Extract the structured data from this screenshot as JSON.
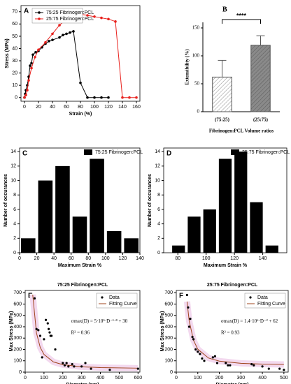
{
  "chart_data": [
    {
      "type": "line",
      "label": "A",
      "xlabel": "Strain (%)",
      "ylabel": "Stress (MPa)",
      "xlim": [
        -5,
        165
      ],
      "xticks": [
        0,
        20,
        40,
        60,
        80,
        100,
        120,
        140,
        160
      ],
      "ylim": [
        -3,
        75
      ],
      "yticks": [
        0,
        10,
        20,
        30,
        40,
        50,
        60,
        70
      ],
      "legend": "upper left",
      "series": [
        {
          "name": "75:25 Fibrinogen:PCL",
          "color": "#000000",
          "x": [
            0,
            1,
            2,
            4,
            6,
            8,
            10,
            12,
            16,
            20,
            25,
            30,
            35,
            40,
            50,
            55,
            60,
            65,
            70,
            80,
            90,
            100,
            110,
            120
          ],
          "values": [
            0,
            3,
            6,
            10,
            17,
            26,
            28,
            35,
            37,
            38,
            41,
            44,
            46,
            47,
            49,
            51,
            52,
            53,
            54,
            12,
            0,
            0,
            0,
            0
          ]
        },
        {
          "name": "25:75 Fibrinogen:PCL",
          "color": "#e8211d",
          "x": [
            0,
            2,
            4,
            6,
            10,
            15,
            20,
            30,
            40,
            50,
            60,
            65,
            70,
            80,
            90,
            100,
            110,
            120,
            130,
            140,
            150,
            160
          ],
          "values": [
            0,
            2,
            6,
            14,
            24,
            33,
            39,
            45,
            52,
            59,
            64,
            69,
            69,
            68,
            67,
            66,
            65,
            64,
            62,
            0,
            0,
            0
          ]
        }
      ]
    },
    {
      "type": "bar",
      "label": "B",
      "ylabel": "Extensibility (%)",
      "xlabel": "Fibrinogen:PCL Volume ratios",
      "categories": [
        "(75:25)",
        "(25:75)"
      ],
      "values": [
        62,
        119
      ],
      "errors": [
        30,
        17
      ],
      "colors": [
        "#ffffff",
        "#8a8a8a"
      ],
      "annotation": "****",
      "ylim": [
        0,
        160
      ],
      "yticks": [
        0,
        50,
        100,
        150
      ]
    },
    {
      "type": "histogram",
      "label": "C",
      "xlabel": "Maximum Strain %",
      "ylabel": "Number of occurances",
      "bins": [
        0,
        20,
        40,
        60,
        80,
        100,
        120,
        140
      ],
      "series": [
        {
          "name": "75:25 Fibrinogen:PCL",
          "color": "#000000",
          "values": [
            2,
            10,
            12,
            5,
            13,
            3,
            2
          ]
        }
      ],
      "xlim": [
        0,
        140
      ],
      "xticks": [
        0,
        20,
        40,
        60,
        80,
        100,
        120,
        140
      ],
      "ylim": [
        0,
        14.5
      ],
      "yticks": [
        0,
        2,
        4,
        6,
        8,
        10,
        12,
        14
      ],
      "legend": "upper right"
    },
    {
      "type": "histogram",
      "label": "D",
      "xlabel": "Maximum Strain %",
      "ylabel": "Number of occurances",
      "bins": [
        75,
        86,
        97,
        108,
        119,
        130,
        141,
        152
      ],
      "series": [
        {
          "name": "25:75 Fibrinogen:PCL",
          "color": "#000000",
          "values": [
            1,
            5,
            6,
            13,
            14,
            7,
            1
          ]
        }
      ],
      "xlim": [
        70,
        157
      ],
      "xticks": [
        80,
        100,
        120,
        140
      ],
      "ylim": [
        0,
        14.5
      ],
      "yticks": [
        0,
        2,
        4,
        6,
        8,
        10,
        12,
        14
      ],
      "legend": "upper right"
    },
    {
      "type": "scatter",
      "label": "E",
      "title": "75:25 Fibrinogen:PCL",
      "xlabel": "Diameter (nm)",
      "ylabel": "Max Stress (MPa)",
      "xlim": [
        0,
        610
      ],
      "xticks": [
        0,
        100,
        200,
        300,
        400,
        500,
        600
      ],
      "ylim": [
        0,
        720
      ],
      "yticks": [
        0,
        100,
        200,
        300,
        400,
        500,
        600,
        700
      ],
      "legend": "upper right",
      "annotations": [
        "σmax(D) = 5·10⁵·D⁻¹·⁸ + 30",
        "R² = 0.96"
      ],
      "series": [
        {
          "name": "Data",
          "type": "scatter",
          "color": "#000000",
          "x": [
            50,
            60,
            70,
            80,
            90,
            100,
            110,
            120,
            125,
            130,
            135,
            140,
            160,
            200,
            210,
            220,
            230,
            250,
            260,
            300,
            320,
            350,
            450,
            600
          ],
          "values": [
            650,
            380,
            370,
            320,
            130,
            290,
            460,
            430,
            380,
            350,
            320,
            320,
            200,
            80,
            60,
            80,
            50,
            70,
            50,
            50,
            80,
            30,
            20,
            30
          ]
        },
        {
          "name": "Fitting Curve",
          "type": "line",
          "color": "#a0461e",
          "x": [
            40,
            60,
            80,
            100,
            150,
            200,
            300,
            400,
            600
          ],
          "values": [
            683,
            345,
            218,
            156,
            90,
            66,
            47,
            40,
            35
          ]
        }
      ]
    },
    {
      "type": "scatter",
      "label": "F",
      "title": "25:75 Fibrinogen:PCL",
      "xlabel": "Diameter (nm)",
      "ylabel": "Max Stress (MPa)",
      "xlim": [
        0,
        520
      ],
      "xticks": [
        0,
        100,
        200,
        300,
        400,
        500
      ],
      "ylim": [
        0,
        720
      ],
      "yticks": [
        0,
        100,
        200,
        300,
        400,
        500,
        600,
        700
      ],
      "legend": "upper right",
      "annotations": [
        "σmax(D) = 1.4·10⁶·D⁻² + 62",
        "R² = 0.93"
      ],
      "series": [
        {
          "name": "Data",
          "type": "scatter",
          "color": "#000000",
          "x": [
            50,
            55,
            60,
            65,
            75,
            80,
            90,
            100,
            110,
            120,
            130,
            170,
            180,
            190,
            230,
            240,
            250,
            350,
            360,
            400,
            430,
            480,
            500
          ],
          "values": [
            680,
            570,
            400,
            470,
            310,
            290,
            200,
            180,
            160,
            120,
            100,
            130,
            140,
            80,
            80,
            60,
            60,
            70,
            60,
            50,
            30,
            30,
            20
          ]
        },
        {
          "name": "Fitting Curve",
          "type": "line",
          "color": "#a0461e",
          "x": [
            50,
            60,
            80,
            100,
            150,
            200,
            300,
            400,
            500
          ],
          "values": [
            622,
            451,
            281,
            202,
            124,
            97,
            78,
            71,
            68
          ]
        }
      ]
    }
  ]
}
